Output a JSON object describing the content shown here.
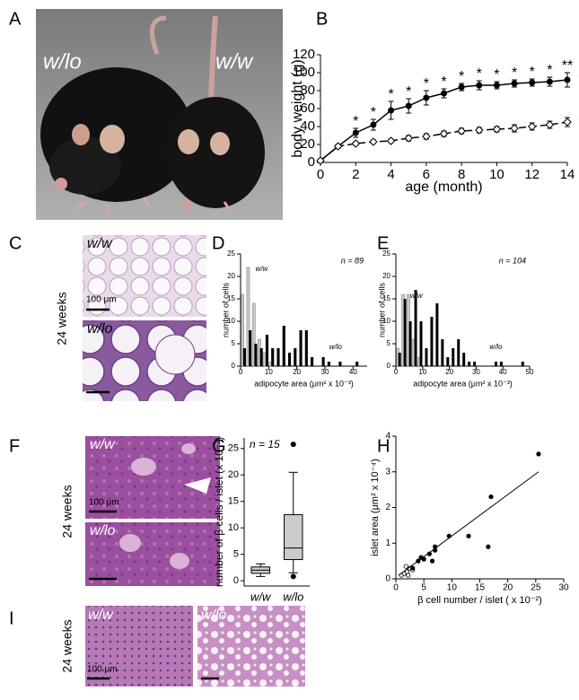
{
  "figure": {
    "letters": [
      "A",
      "B",
      "C",
      "D",
      "E",
      "F",
      "G",
      "H",
      "I"
    ],
    "photo_labels": [
      "w/lo",
      "w/w"
    ],
    "C": {
      "labels": [
        "w/w",
        "w/lo"
      ],
      "scale": "100 μm",
      "age": "24 weeks"
    },
    "F": {
      "labels": [
        "w/w",
        "w/lo"
      ],
      "scale": "100 μm",
      "age": "24 weeks"
    },
    "I": {
      "labels": [
        "w/w",
        "w/lo"
      ],
      "scale": "100 μm",
      "age": "24 weeks"
    }
  },
  "chart_data": [
    {
      "type": "line",
      "xlabel": "age (month)",
      "ylabel": "body weight (g)",
      "x": [
        0,
        1,
        2,
        3,
        4,
        5,
        6,
        7,
        8,
        9,
        10,
        11,
        12,
        13,
        14
      ],
      "xlim": [
        0,
        14
      ],
      "xticks": [
        0,
        2,
        4,
        6,
        8,
        10,
        12,
        14
      ],
      "ylim": [
        0,
        120
      ],
      "yticks": [
        0,
        20,
        40,
        60,
        80,
        100,
        120
      ],
      "series": [
        {
          "name": "w/lo",
          "color": "#000000",
          "marker": "circle",
          "linestyle": "solid",
          "values": [
            2,
            18,
            33,
            42,
            58,
            63,
            72,
            77,
            84,
            86,
            86,
            88,
            89,
            90,
            92
          ],
          "errors": [
            0,
            2,
            5,
            6,
            10,
            8,
            8,
            5,
            4,
            5,
            4,
            4,
            4,
            5,
            8
          ]
        },
        {
          "name": "w/w",
          "color": "#000000",
          "marker": "diamond",
          "linestyle": "dashed",
          "values": [
            2,
            18,
            21,
            23,
            24,
            27,
            29,
            32,
            35,
            36,
            37,
            38,
            40,
            42,
            45
          ],
          "errors": [
            0,
            1,
            2,
            2,
            2,
            3,
            3,
            3,
            3,
            3,
            3,
            4,
            4,
            4,
            5
          ]
        }
      ],
      "significance": {
        "x": [
          2,
          3,
          4,
          5,
          6,
          7,
          8,
          9,
          10,
          11,
          12,
          13,
          14
        ],
        "labels": [
          "*",
          "*",
          "*",
          "*",
          "*",
          "*",
          "*",
          "*",
          "*",
          "*",
          "*",
          "*",
          "**"
        ]
      }
    },
    {
      "type": "histogram",
      "xlabel": "adipocyte area (μm² x 10⁻³)",
      "ylabel": "number of cells",
      "annotation": "n = 89",
      "bins": [
        0,
        2,
        4,
        6,
        8,
        10,
        12,
        14,
        16,
        18,
        20,
        22,
        24,
        26,
        28,
        30,
        32,
        34,
        36,
        38,
        40,
        42
      ],
      "xlim": [
        0,
        45
      ],
      "xticks": [
        0,
        10,
        20,
        30,
        40
      ],
      "ylim": [
        0,
        25
      ],
      "yticks": [
        0,
        5,
        10,
        15,
        20,
        25
      ],
      "series": [
        {
          "name": "w/w",
          "color": "#c8c8c8",
          "counts": [
            16,
            22,
            14,
            6,
            3,
            1,
            0,
            0,
            0,
            0,
            0,
            0,
            0,
            0,
            0,
            0,
            0,
            0,
            0,
            0,
            0
          ]
        },
        {
          "name": "w/lo",
          "color": "#000000",
          "counts": [
            4,
            8,
            5,
            4,
            7,
            4,
            4,
            9,
            3,
            4,
            8,
            8,
            2,
            0,
            2,
            1,
            0,
            1,
            0,
            0,
            1
          ]
        }
      ]
    },
    {
      "type": "histogram",
      "xlabel": "adipocyte area (μm² x 10⁻³)",
      "ylabel": "number of cells",
      "annotation": "n = 104",
      "bins": [
        0,
        2,
        4,
        6,
        8,
        10,
        12,
        14,
        16,
        18,
        20,
        22,
        24,
        26,
        28,
        30,
        32,
        34,
        36,
        38,
        40,
        42,
        44,
        46,
        48
      ],
      "xlim": [
        0,
        50
      ],
      "xticks": [
        0,
        10,
        20,
        30,
        40,
        50
      ],
      "ylim": [
        0,
        25
      ],
      "yticks": [
        0,
        5,
        10,
        15,
        20,
        25
      ],
      "series": [
        {
          "name": "w/w",
          "color": "#c8c8c8",
          "counts": [
            4,
            16,
            16,
            6,
            2,
            0,
            0,
            0,
            0,
            0,
            0,
            0,
            0,
            0,
            0,
            0,
            0,
            0,
            0,
            0,
            0,
            0,
            0,
            0
          ]
        },
        {
          "name": "w/lo",
          "color": "#000000",
          "counts": [
            3,
            15,
            10,
            17,
            10,
            4,
            11,
            14,
            6,
            2,
            4,
            6,
            3,
            1,
            1,
            0,
            0,
            0,
            1,
            1,
            0,
            0,
            0,
            1
          ]
        }
      ]
    },
    {
      "type": "box",
      "ylabel": "number of β cells / islet (x 10⁻²)",
      "annotation": "n = 15",
      "categories": [
        "w/w",
        "w/lo"
      ],
      "color": "#cccccc",
      "ylim": [
        -1,
        27
      ],
      "yticks": [
        0,
        5,
        10,
        15,
        20,
        25
      ],
      "boxes": [
        {
          "min": 0.8,
          "q1": 1.4,
          "median": 2,
          "q3": 2.6,
          "max": 3.2,
          "outliers": []
        },
        {
          "min": 1.5,
          "q1": 4,
          "median": 6.2,
          "q3": 12.5,
          "max": 20.5,
          "outliers": [
            0.8,
            25.8
          ]
        }
      ]
    },
    {
      "type": "scatter",
      "xlabel": "β cell number / islet ( x 10⁻²)",
      "ylabel": "islet area (μm² x 10⁻⁴)",
      "xlim": [
        0,
        30
      ],
      "xticks": [
        0,
        5,
        10,
        15,
        20,
        25,
        30
      ],
      "ylim": [
        0,
        4
      ],
      "yticks": [
        0,
        1,
        2,
        3,
        4
      ],
      "series": [
        {
          "marker": "open",
          "color": "#000000",
          "x": [
            1,
            1.5,
            2,
            2.5,
            3,
            1.8,
            2.2
          ],
          "y": [
            0.1,
            0.15,
            0.2,
            0.3,
            0.25,
            0.35,
            0.1
          ]
        },
        {
          "marker": "filled",
          "color": "#000000",
          "x": [
            3,
            4,
            4.5,
            5,
            6,
            6.5,
            7,
            7,
            9.5,
            13,
            16.5,
            17,
            25.5
          ],
          "y": [
            0.3,
            0.5,
            0.6,
            0.55,
            0.7,
            0.5,
            0.8,
            0.9,
            1.2,
            1.2,
            0.9,
            2.3,
            3.5
          ]
        }
      ],
      "fit": {
        "x": [
          0.5,
          25.5
        ],
        "y": [
          0.1,
          3.0
        ]
      }
    }
  ]
}
